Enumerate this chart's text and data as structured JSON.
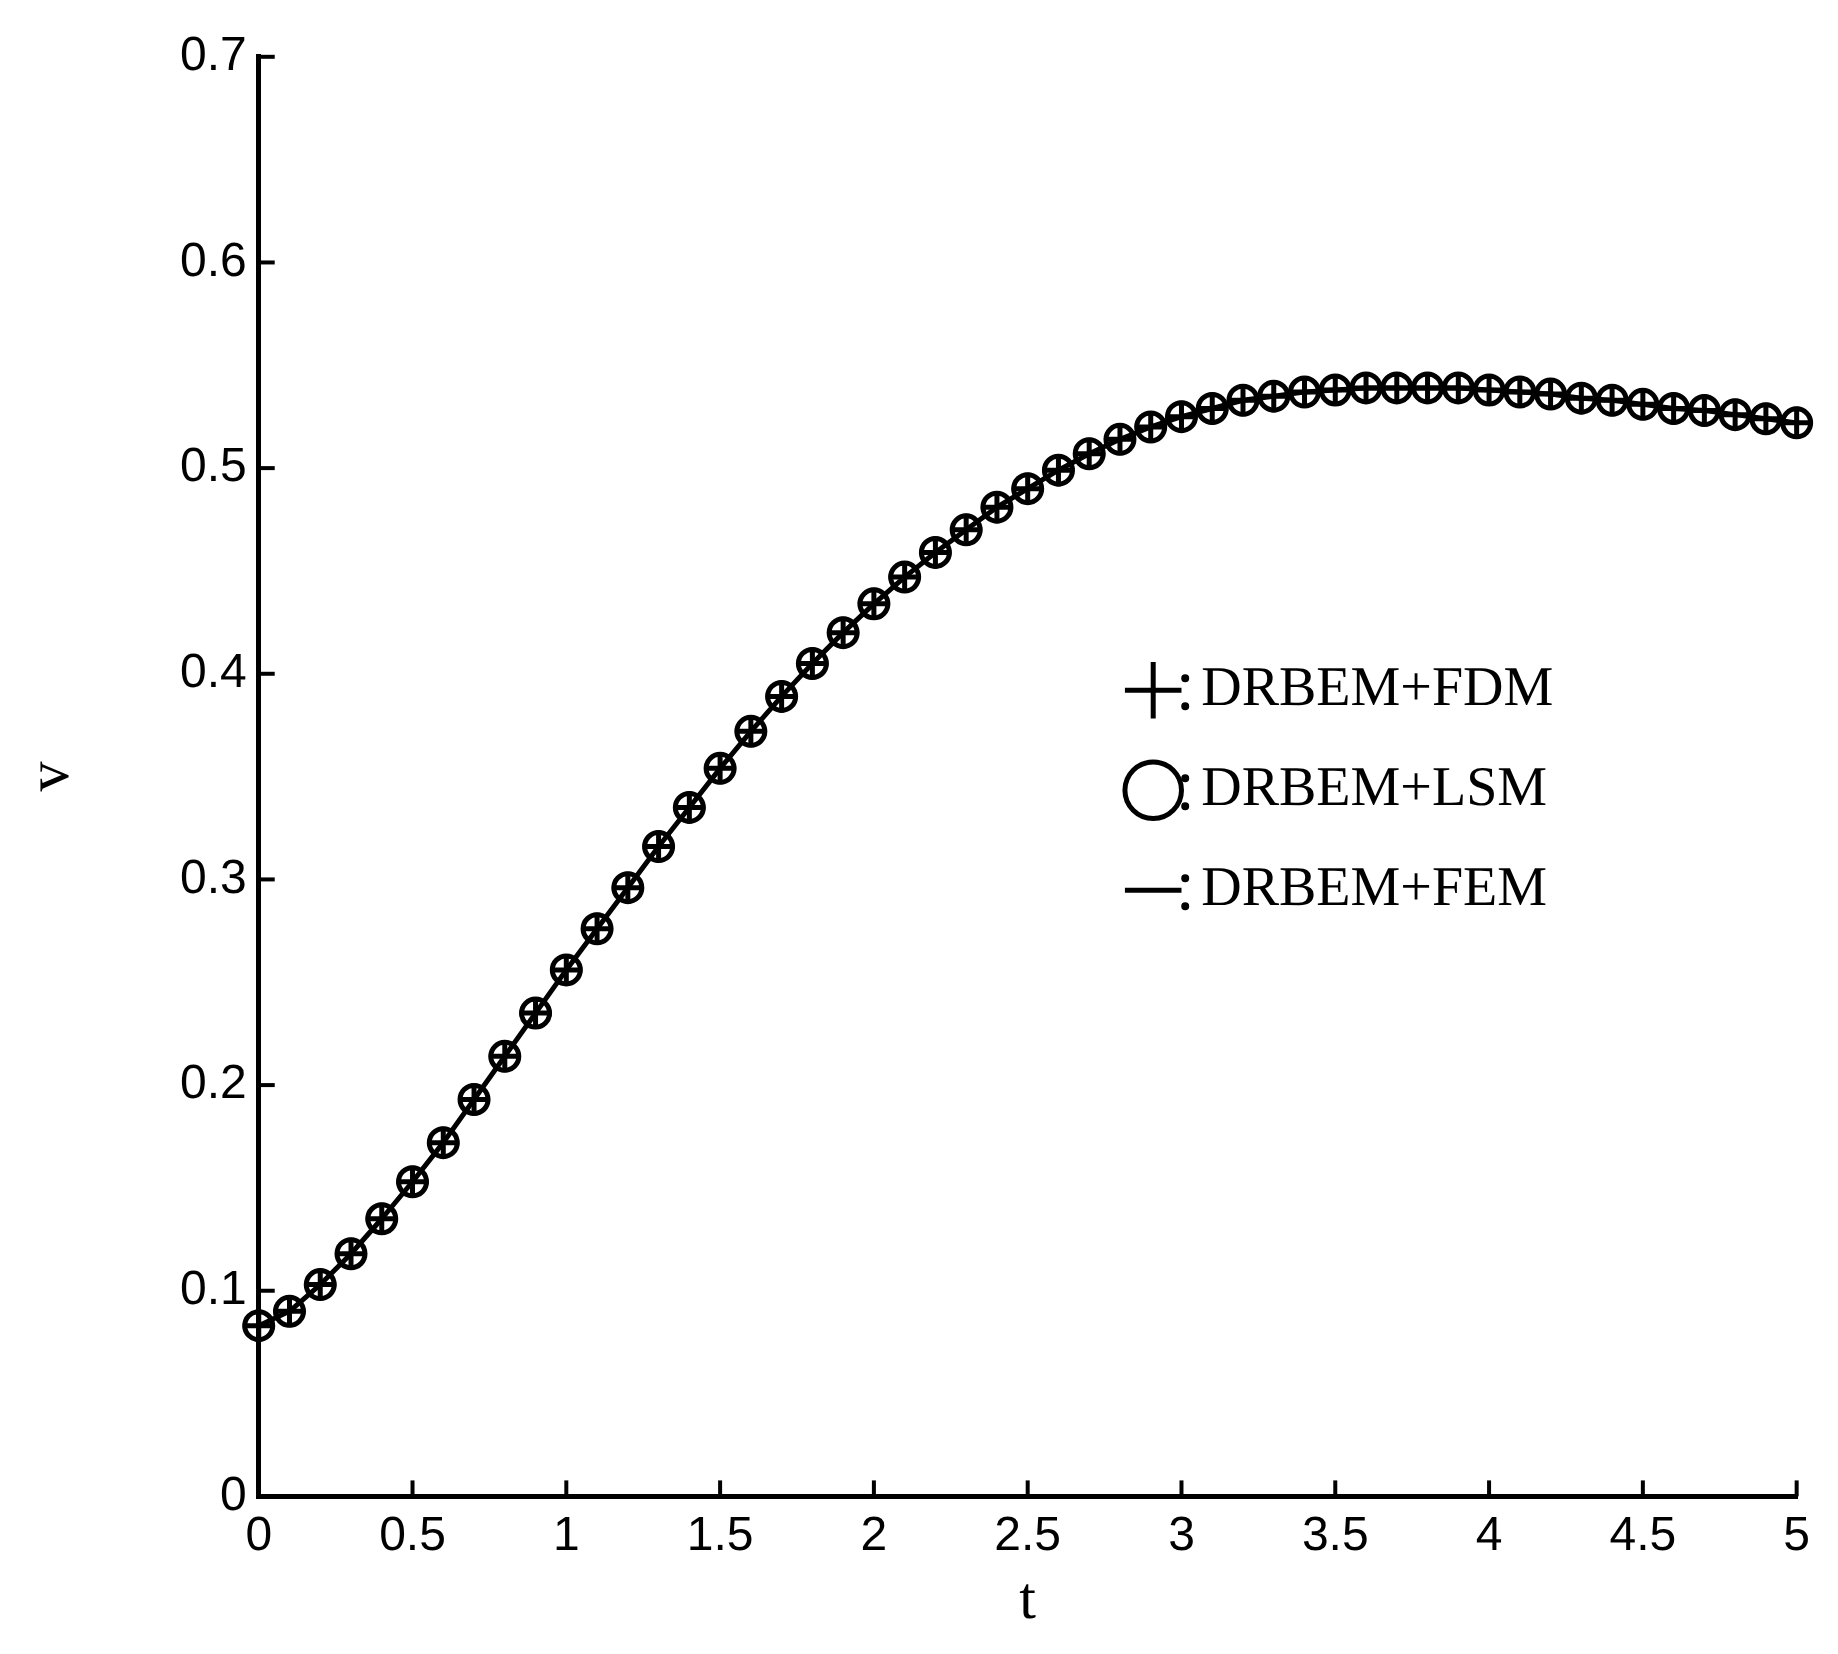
{
  "chart_data": {
    "type": "line",
    "xlabel": "t",
    "ylabel": "v",
    "x": [
      0,
      0.1,
      0.2,
      0.3,
      0.4,
      0.5,
      0.6,
      0.7,
      0.8,
      0.9,
      1,
      1.1,
      1.2,
      1.3,
      1.4,
      1.5,
      1.6,
      1.7,
      1.8,
      1.9,
      2,
      2.1,
      2.2,
      2.3,
      2.4,
      2.5,
      2.6,
      2.7,
      2.8,
      2.9,
      3,
      3.1,
      3.2,
      3.3,
      3.4,
      3.5,
      3.6,
      3.7,
      3.8,
      3.9,
      4,
      4.1,
      4.2,
      4.3,
      4.4,
      4.5,
      4.6,
      4.7,
      4.8,
      4.9,
      5
    ],
    "series": [
      {
        "name": "DRBEM+FDM",
        "type": "scatter",
        "marker": "cross",
        "color": "#000000",
        "values": [
          0.083,
          0.09,
          0.103,
          0.118,
          0.135,
          0.153,
          0.172,
          0.193,
          0.214,
          0.235,
          0.256,
          0.276,
          0.296,
          0.316,
          0.335,
          0.354,
          0.372,
          0.389,
          0.405,
          0.42,
          0.434,
          0.447,
          0.459,
          0.47,
          0.481,
          0.49,
          0.499,
          0.507,
          0.514,
          0.52,
          0.525,
          0.529,
          0.533,
          0.535,
          0.537,
          0.538,
          0.539,
          0.539,
          0.539,
          0.539,
          0.538,
          0.537,
          0.536,
          0.534,
          0.533,
          0.531,
          0.529,
          0.528,
          0.526,
          0.524,
          0.522
        ]
      },
      {
        "name": "DRBEM+LSM",
        "type": "scatter",
        "marker": "circle",
        "color": "#000000",
        "values": [
          0.083,
          0.09,
          0.103,
          0.118,
          0.135,
          0.153,
          0.172,
          0.193,
          0.214,
          0.235,
          0.256,
          0.276,
          0.296,
          0.316,
          0.335,
          0.354,
          0.372,
          0.389,
          0.405,
          0.42,
          0.434,
          0.447,
          0.459,
          0.47,
          0.481,
          0.49,
          0.499,
          0.507,
          0.514,
          0.52,
          0.525,
          0.529,
          0.533,
          0.535,
          0.537,
          0.538,
          0.539,
          0.539,
          0.539,
          0.539,
          0.538,
          0.537,
          0.536,
          0.534,
          0.533,
          0.531,
          0.529,
          0.528,
          0.526,
          0.524,
          0.522
        ]
      },
      {
        "name": "DRBEM+FEM",
        "type": "line",
        "marker": "none",
        "line_style": "solid",
        "color": "#000000",
        "values": [
          0.083,
          0.09,
          0.103,
          0.118,
          0.135,
          0.153,
          0.172,
          0.193,
          0.214,
          0.235,
          0.256,
          0.276,
          0.296,
          0.316,
          0.335,
          0.354,
          0.372,
          0.389,
          0.405,
          0.42,
          0.434,
          0.447,
          0.459,
          0.47,
          0.481,
          0.49,
          0.499,
          0.507,
          0.514,
          0.52,
          0.525,
          0.529,
          0.533,
          0.535,
          0.537,
          0.538,
          0.539,
          0.539,
          0.539,
          0.539,
          0.538,
          0.537,
          0.536,
          0.534,
          0.533,
          0.531,
          0.529,
          0.528,
          0.526,
          0.524,
          0.522
        ]
      }
    ],
    "xlim": [
      0,
      5
    ],
    "xticks": [
      0,
      0.5,
      1,
      1.5,
      2,
      2.5,
      3,
      3.5,
      4,
      4.5,
      5
    ],
    "ylim": [
      0,
      0.7
    ],
    "yticks": [
      0,
      0.1,
      0.2,
      0.3,
      0.4,
      0.5,
      0.6,
      0.7
    ],
    "legend": "right"
  }
}
